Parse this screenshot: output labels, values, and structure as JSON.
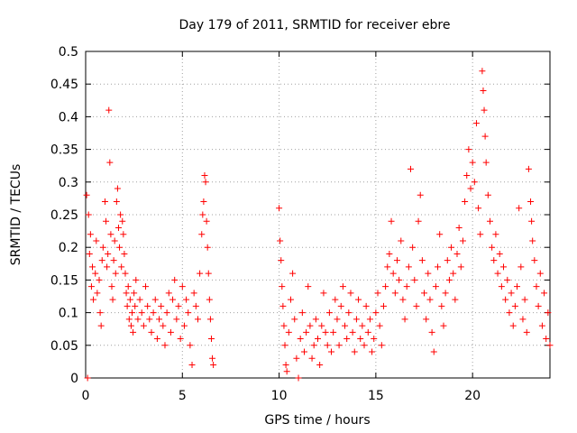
{
  "chart_data": {
    "type": "scatter",
    "title": "Day 179 of 2011, SRMTID for receiver ebre",
    "xlabel": "GPS time / hours",
    "ylabel": "SRMTID / TECUs",
    "xlim": [
      0,
      24
    ],
    "ylim": [
      0,
      0.5
    ],
    "xticks": [
      0,
      5,
      10,
      15,
      20
    ],
    "yticks": [
      0,
      0.05,
      0.1,
      0.15,
      0.2,
      0.25,
      0.3,
      0.35,
      0.4,
      0.45,
      0.5
    ],
    "ytick_labels": [
      "0",
      "0.05",
      "0.1",
      "0.15",
      "0.2",
      "0.25",
      "0.3",
      "0.35",
      "0.4",
      "0.45",
      "0.5"
    ],
    "grid": true,
    "marker": "+",
    "series": [
      {
        "name": "SRMTID",
        "color": "#ff0000",
        "points": [
          [
            0.05,
            0.28
          ],
          [
            0.1,
            0.0
          ],
          [
            0.15,
            0.25
          ],
          [
            0.2,
            0.19
          ],
          [
            0.25,
            0.22
          ],
          [
            0.3,
            0.14
          ],
          [
            0.35,
            0.17
          ],
          [
            0.4,
            0.12
          ],
          [
            0.5,
            0.16
          ],
          [
            0.55,
            0.21
          ],
          [
            0.6,
            0.13
          ],
          [
            0.7,
            0.15
          ],
          [
            0.75,
            0.1
          ],
          [
            0.8,
            0.08
          ],
          [
            0.85,
            0.18
          ],
          [
            0.9,
            0.2
          ],
          [
            1.0,
            0.27
          ],
          [
            1.05,
            0.24
          ],
          [
            1.1,
            0.17
          ],
          [
            1.15,
            0.19
          ],
          [
            1.2,
            0.41
          ],
          [
            1.25,
            0.33
          ],
          [
            1.3,
            0.22
          ],
          [
            1.35,
            0.14
          ],
          [
            1.4,
            0.12
          ],
          [
            1.45,
            0.18
          ],
          [
            1.5,
            0.21
          ],
          [
            1.55,
            0.16
          ],
          [
            1.6,
            0.27
          ],
          [
            1.65,
            0.29
          ],
          [
            1.7,
            0.23
          ],
          [
            1.75,
            0.2
          ],
          [
            1.8,
            0.25
          ],
          [
            1.85,
            0.17
          ],
          [
            1.9,
            0.24
          ],
          [
            1.95,
            0.22
          ],
          [
            2.0,
            0.19
          ],
          [
            2.05,
            0.16
          ],
          [
            2.1,
            0.13
          ],
          [
            2.15,
            0.11
          ],
          [
            2.2,
            0.14
          ],
          [
            2.25,
            0.09
          ],
          [
            2.3,
            0.12
          ],
          [
            2.35,
            0.08
          ],
          [
            2.4,
            0.1
          ],
          [
            2.45,
            0.07
          ],
          [
            2.5,
            0.13
          ],
          [
            2.55,
            0.11
          ],
          [
            2.6,
            0.15
          ],
          [
            2.7,
            0.09
          ],
          [
            2.8,
            0.12
          ],
          [
            2.9,
            0.1
          ],
          [
            3.0,
            0.08
          ],
          [
            3.1,
            0.14
          ],
          [
            3.2,
            0.11
          ],
          [
            3.3,
            0.09
          ],
          [
            3.4,
            0.07
          ],
          [
            3.5,
            0.1
          ],
          [
            3.6,
            0.12
          ],
          [
            3.7,
            0.06
          ],
          [
            3.8,
            0.09
          ],
          [
            3.9,
            0.11
          ],
          [
            4.0,
            0.08
          ],
          [
            4.1,
            0.05
          ],
          [
            4.2,
            0.1
          ],
          [
            4.3,
            0.13
          ],
          [
            4.4,
            0.07
          ],
          [
            4.5,
            0.12
          ],
          [
            4.6,
            0.15
          ],
          [
            4.7,
            0.09
          ],
          [
            4.8,
            0.11
          ],
          [
            4.9,
            0.06
          ],
          [
            5.0,
            0.14
          ],
          [
            5.1,
            0.08
          ],
          [
            5.2,
            0.12
          ],
          [
            5.3,
            0.1
          ],
          [
            5.4,
            0.05
          ],
          [
            5.5,
            0.02
          ],
          [
            5.6,
            0.13
          ],
          [
            5.7,
            0.11
          ],
          [
            5.8,
            0.09
          ],
          [
            5.9,
            0.16
          ],
          [
            6.0,
            0.22
          ],
          [
            6.05,
            0.25
          ],
          [
            6.1,
            0.27
          ],
          [
            6.15,
            0.31
          ],
          [
            6.2,
            0.3
          ],
          [
            6.25,
            0.24
          ],
          [
            6.3,
            0.2
          ],
          [
            6.35,
            0.16
          ],
          [
            6.4,
            0.12
          ],
          [
            6.45,
            0.09
          ],
          [
            6.5,
            0.06
          ],
          [
            6.55,
            0.03
          ],
          [
            6.6,
            0.02
          ],
          [
            10.0,
            0.26
          ],
          [
            10.05,
            0.21
          ],
          [
            10.1,
            0.18
          ],
          [
            10.15,
            0.14
          ],
          [
            10.2,
            0.11
          ],
          [
            10.25,
            0.08
          ],
          [
            10.3,
            0.05
          ],
          [
            10.35,
            0.02
          ],
          [
            10.4,
            0.01
          ],
          [
            10.5,
            0.07
          ],
          [
            10.6,
            0.12
          ],
          [
            10.7,
            0.16
          ],
          [
            10.8,
            0.09
          ],
          [
            10.9,
            0.03
          ],
          [
            11.0,
            0.0
          ],
          [
            11.1,
            0.06
          ],
          [
            11.2,
            0.1
          ],
          [
            11.3,
            0.04
          ],
          [
            11.4,
            0.07
          ],
          [
            11.5,
            0.14
          ],
          [
            11.6,
            0.08
          ],
          [
            11.7,
            0.03
          ],
          [
            11.8,
            0.05
          ],
          [
            11.9,
            0.09
          ],
          [
            12.0,
            0.06
          ],
          [
            12.1,
            0.02
          ],
          [
            12.2,
            0.08
          ],
          [
            12.3,
            0.13
          ],
          [
            12.4,
            0.07
          ],
          [
            12.5,
            0.05
          ],
          [
            12.6,
            0.1
          ],
          [
            12.7,
            0.04
          ],
          [
            12.8,
            0.07
          ],
          [
            12.9,
            0.12
          ],
          [
            13.0,
            0.09
          ],
          [
            13.1,
            0.05
          ],
          [
            13.2,
            0.11
          ],
          [
            13.3,
            0.14
          ],
          [
            13.4,
            0.08
          ],
          [
            13.5,
            0.06
          ],
          [
            13.6,
            0.1
          ],
          [
            13.7,
            0.13
          ],
          [
            13.8,
            0.07
          ],
          [
            13.9,
            0.04
          ],
          [
            14.0,
            0.09
          ],
          [
            14.1,
            0.12
          ],
          [
            14.2,
            0.06
          ],
          [
            14.3,
            0.08
          ],
          [
            14.4,
            0.05
          ],
          [
            14.5,
            0.11
          ],
          [
            14.6,
            0.07
          ],
          [
            14.7,
            0.09
          ],
          [
            14.8,
            0.04
          ],
          [
            14.9,
            0.06
          ],
          [
            15.0,
            0.1
          ],
          [
            15.1,
            0.13
          ],
          [
            15.2,
            0.08
          ],
          [
            15.3,
            0.05
          ],
          [
            15.4,
            0.11
          ],
          [
            15.5,
            0.14
          ],
          [
            15.6,
            0.17
          ],
          [
            15.7,
            0.19
          ],
          [
            15.8,
            0.24
          ],
          [
            15.9,
            0.16
          ],
          [
            16.0,
            0.13
          ],
          [
            16.1,
            0.18
          ],
          [
            16.2,
            0.15
          ],
          [
            16.3,
            0.21
          ],
          [
            16.4,
            0.12
          ],
          [
            16.5,
            0.09
          ],
          [
            16.6,
            0.14
          ],
          [
            16.7,
            0.17
          ],
          [
            16.8,
            0.32
          ],
          [
            16.9,
            0.2
          ],
          [
            17.0,
            0.15
          ],
          [
            17.1,
            0.11
          ],
          [
            17.2,
            0.24
          ],
          [
            17.3,
            0.28
          ],
          [
            17.4,
            0.18
          ],
          [
            17.5,
            0.13
          ],
          [
            17.6,
            0.09
          ],
          [
            17.7,
            0.16
          ],
          [
            17.8,
            0.12
          ],
          [
            17.9,
            0.07
          ],
          [
            18.0,
            0.04
          ],
          [
            18.1,
            0.14
          ],
          [
            18.2,
            0.17
          ],
          [
            18.3,
            0.22
          ],
          [
            18.4,
            0.11
          ],
          [
            18.5,
            0.08
          ],
          [
            18.6,
            0.13
          ],
          [
            18.7,
            0.18
          ],
          [
            18.8,
            0.15
          ],
          [
            18.9,
            0.2
          ],
          [
            19.0,
            0.16
          ],
          [
            19.1,
            0.12
          ],
          [
            19.2,
            0.19
          ],
          [
            19.3,
            0.23
          ],
          [
            19.4,
            0.17
          ],
          [
            19.5,
            0.21
          ],
          [
            19.6,
            0.27
          ],
          [
            19.7,
            0.31
          ],
          [
            19.8,
            0.35
          ],
          [
            19.9,
            0.29
          ],
          [
            20.0,
            0.33
          ],
          [
            20.1,
            0.3
          ],
          [
            20.2,
            0.39
          ],
          [
            20.3,
            0.26
          ],
          [
            20.4,
            0.22
          ],
          [
            20.5,
            0.47
          ],
          [
            20.55,
            0.44
          ],
          [
            20.6,
            0.41
          ],
          [
            20.65,
            0.37
          ],
          [
            20.7,
            0.33
          ],
          [
            20.8,
            0.28
          ],
          [
            20.9,
            0.24
          ],
          [
            21.0,
            0.2
          ],
          [
            21.1,
            0.18
          ],
          [
            21.2,
            0.22
          ],
          [
            21.3,
            0.16
          ],
          [
            21.4,
            0.19
          ],
          [
            21.5,
            0.14
          ],
          [
            21.6,
            0.17
          ],
          [
            21.7,
            0.12
          ],
          [
            21.8,
            0.15
          ],
          [
            21.9,
            0.1
          ],
          [
            22.0,
            0.13
          ],
          [
            22.1,
            0.08
          ],
          [
            22.2,
            0.11
          ],
          [
            22.3,
            0.14
          ],
          [
            22.4,
            0.26
          ],
          [
            22.5,
            0.17
          ],
          [
            22.6,
            0.09
          ],
          [
            22.7,
            0.12
          ],
          [
            22.8,
            0.07
          ],
          [
            22.9,
            0.32
          ],
          [
            23.0,
            0.27
          ],
          [
            23.05,
            0.24
          ],
          [
            23.1,
            0.21
          ],
          [
            23.2,
            0.18
          ],
          [
            23.3,
            0.14
          ],
          [
            23.4,
            0.11
          ],
          [
            23.5,
            0.16
          ],
          [
            23.6,
            0.08
          ],
          [
            23.7,
            0.13
          ],
          [
            23.8,
            0.06
          ],
          [
            23.9,
            0.1
          ],
          [
            24.0,
            0.05
          ]
        ]
      }
    ]
  }
}
